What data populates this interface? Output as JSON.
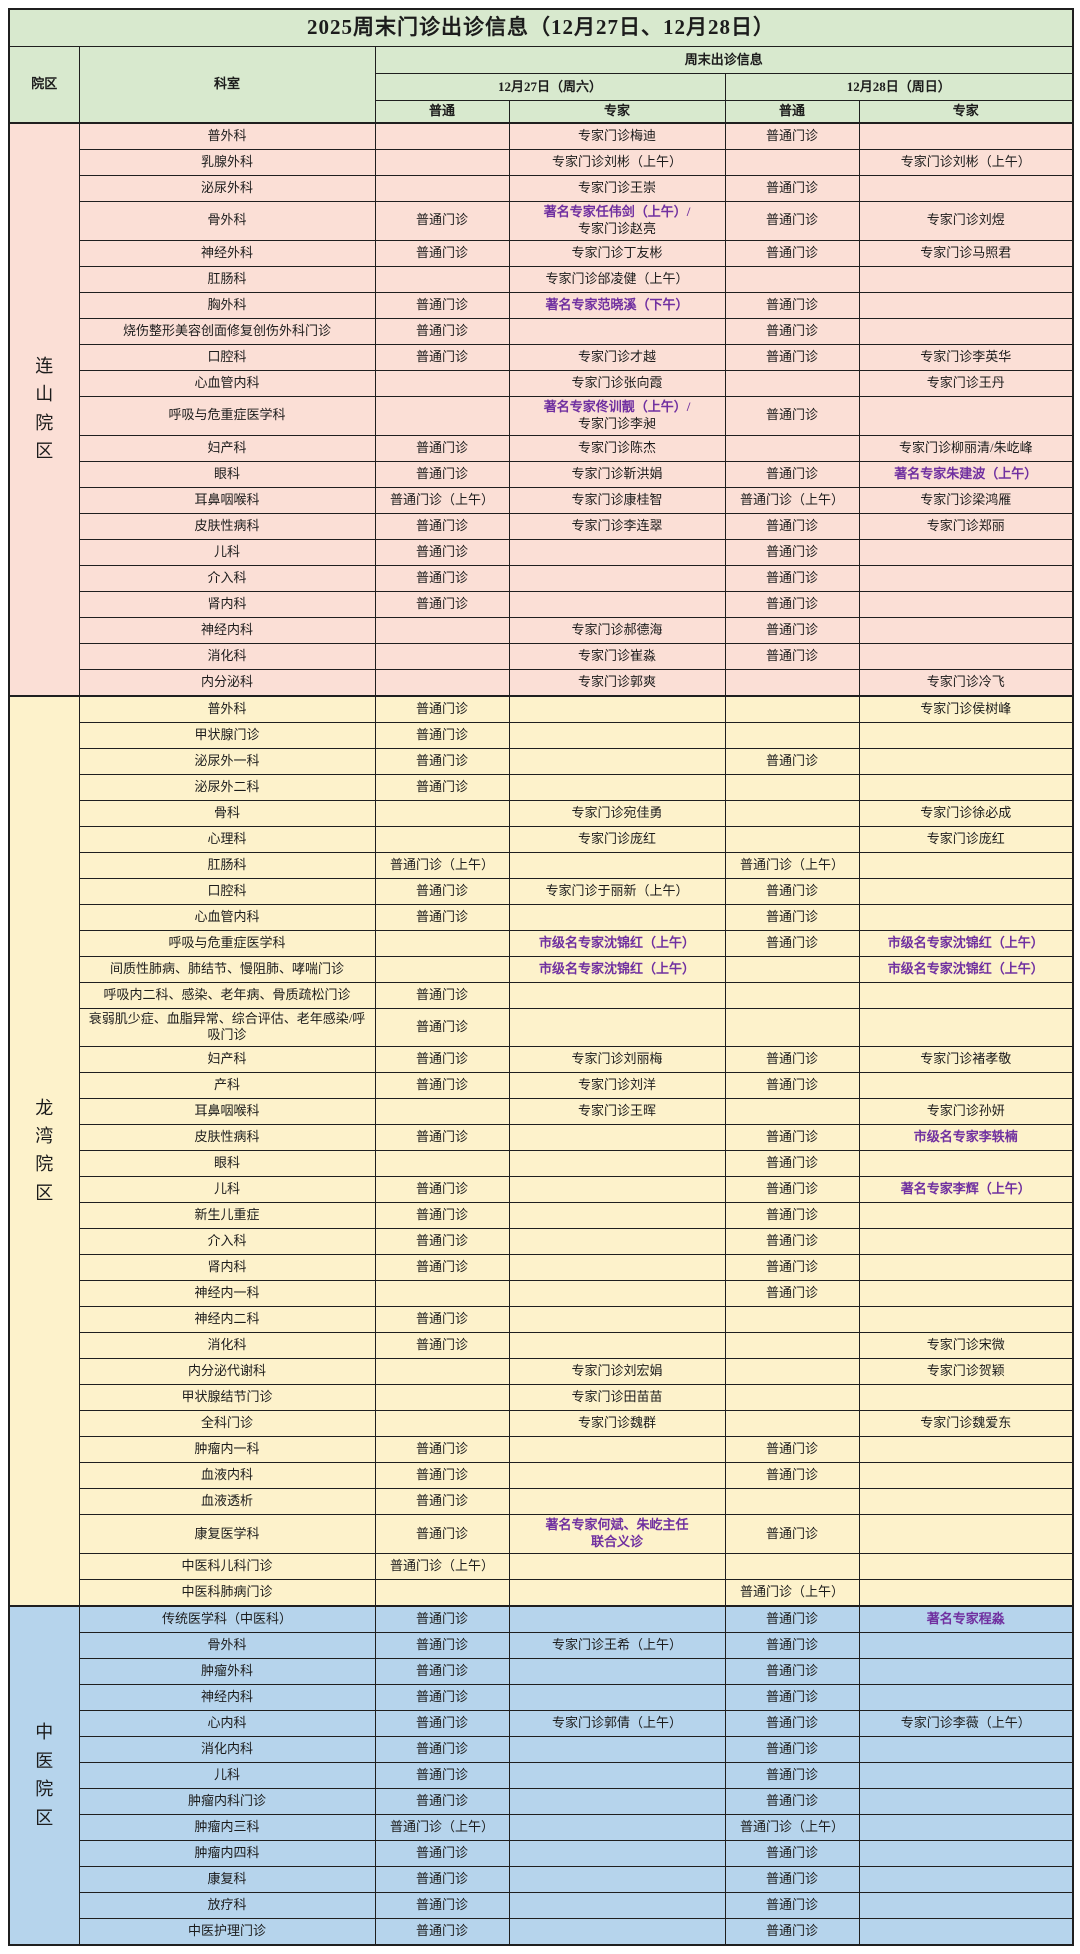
{
  "title": "2025周末门诊出诊信息（12月27日、12月28日）",
  "header": {
    "campus": "院区",
    "department": "科室",
    "weekend_info": "周末出诊信息",
    "day_sat": "12月27日（周六）",
    "day_sun": "12月28日（周日）",
    "ordinary": "普通",
    "expert": "专家"
  },
  "colors": {
    "header_bg": "#d8e9ce",
    "lianshan_bg": "#fbdfd6",
    "longwan_bg": "#fdf2cb",
    "zhongyi_bg": "#b6d4ec",
    "accent_purple": "#7030a0",
    "border": "#1f1f1f"
  },
  "sections": [
    {
      "name": "连山院区",
      "bg": "#fbdfd6",
      "rows": [
        [
          "普外科",
          "",
          "专家门诊梅迪",
          "普通门诊",
          ""
        ],
        [
          "乳腺外科",
          "",
          "专家门诊刘彬（上午）",
          "",
          "专家门诊刘彬（上午）"
        ],
        [
          "泌尿外科",
          "",
          "专家门诊王崇",
          "普通门诊",
          ""
        ],
        [
          "骨外科",
          "普通门诊",
          {
            "lines": [
              {
                "t": "著名专家任伟剑（上午）/",
                "em": true
              },
              {
                "t": "专家门诊赵亮"
              }
            ]
          },
          "普通门诊",
          "专家门诊刘煜"
        ],
        [
          "神经外科",
          "普通门诊",
          "专家门诊丁友彬",
          "普通门诊",
          "专家门诊马照君"
        ],
        [
          "肛肠科",
          "",
          "专家门诊邰凌健（上午）",
          "",
          ""
        ],
        [
          "胸外科",
          "普通门诊",
          {
            "t": "著名专家范晓溪（下午）",
            "em": true
          },
          "普通门诊",
          ""
        ],
        [
          "烧伤整形美容创面修复创伤外科门诊",
          "普通门诊",
          "",
          "普通门诊",
          ""
        ],
        [
          "口腔科",
          "普通门诊",
          "专家门诊才越",
          "普通门诊",
          "专家门诊李英华"
        ],
        [
          "心血管内科",
          "",
          "专家门诊张向霞",
          "",
          "专家门诊王丹"
        ],
        [
          "呼吸与危重症医学科",
          "",
          {
            "lines": [
              {
                "t": "著名专家佟训靓（上午）/",
                "em": true
              },
              {
                "t": "专家门诊李昶"
              }
            ]
          },
          "普通门诊",
          ""
        ],
        [
          "妇产科",
          "普通门诊",
          "专家门诊陈杰",
          "",
          "专家门诊柳丽清/朱屹峰"
        ],
        [
          "眼科",
          "普通门诊",
          "专家门诊靳洪娟",
          "普通门诊",
          {
            "t": "著名专家朱建波（上午）",
            "em": true
          }
        ],
        [
          "耳鼻咽喉科",
          "普通门诊（上午）",
          "专家门诊康桂智",
          "普通门诊（上午）",
          "专家门诊梁鸿雁"
        ],
        [
          "皮肤性病科",
          "普通门诊",
          "专家门诊李连翠",
          "普通门诊",
          "专家门诊郑丽"
        ],
        [
          "儿科",
          "普通门诊",
          "",
          "普通门诊",
          ""
        ],
        [
          "介入科",
          "普通门诊",
          "",
          "普通门诊",
          ""
        ],
        [
          "肾内科",
          "普通门诊",
          "",
          "普通门诊",
          ""
        ],
        [
          "神经内科",
          "",
          "专家门诊郝德海",
          "普通门诊",
          ""
        ],
        [
          "消化科",
          "",
          "专家门诊崔淼",
          "普通门诊",
          ""
        ],
        [
          "内分泌科",
          "",
          "专家门诊郭爽",
          "",
          "专家门诊冷飞"
        ]
      ]
    },
    {
      "name": "龙湾院区",
      "bg": "#fdf2cb",
      "rows": [
        [
          "普外科",
          "普通门诊",
          "",
          "",
          "专家门诊侯树峰"
        ],
        [
          "甲状腺门诊",
          "普通门诊",
          "",
          "",
          ""
        ],
        [
          "泌尿外一科",
          "普通门诊",
          "",
          "普通门诊",
          ""
        ],
        [
          "泌尿外二科",
          "普通门诊",
          "",
          "",
          ""
        ],
        [
          "骨科",
          "",
          "专家门诊宛佳勇",
          "",
          "专家门诊徐必成"
        ],
        [
          "心理科",
          "",
          "专家门诊庞红",
          "",
          "专家门诊庞红"
        ],
        [
          "肛肠科",
          "普通门诊（上午）",
          "",
          "普通门诊（上午）",
          ""
        ],
        [
          "口腔科",
          "普通门诊",
          "专家门诊于丽新（上午）",
          "普通门诊",
          ""
        ],
        [
          "心血管内科",
          "普通门诊",
          "",
          "普通门诊",
          ""
        ],
        [
          "呼吸与危重症医学科",
          "",
          {
            "t": "市级名专家沈锦红（上午）",
            "em": true
          },
          "普通门诊",
          {
            "t": "市级名专家沈锦红（上午）",
            "em": true
          }
        ],
        [
          "间质性肺病、肺结节、慢阻肺、哮喘门诊",
          "",
          {
            "t": "市级名专家沈锦红（上午）",
            "em": true
          },
          "",
          {
            "t": "市级名专家沈锦红（上午）",
            "em": true
          }
        ],
        [
          "呼吸内二科、感染、老年病、骨质疏松门诊",
          "普通门诊",
          "",
          "",
          ""
        ],
        [
          "衰弱肌少症、血脂异常、综合评估、老年感染/呼吸门诊",
          "普通门诊",
          "",
          "",
          ""
        ],
        [
          "妇产科",
          "普通门诊",
          "专家门诊刘丽梅",
          "普通门诊",
          "专家门诊褚孝敬"
        ],
        [
          "产科",
          "普通门诊",
          "专家门诊刘洋",
          "普通门诊",
          ""
        ],
        [
          "耳鼻咽喉科",
          "",
          "专家门诊王晖",
          "",
          "专家门诊孙妍"
        ],
        [
          "皮肤性病科",
          "普通门诊",
          "",
          "普通门诊",
          {
            "t": "市级名专家李轶楠",
            "em": true
          }
        ],
        [
          "眼科",
          "",
          "",
          "普通门诊",
          ""
        ],
        [
          "儿科",
          "普通门诊",
          "",
          "普通门诊",
          {
            "t": "著名专家李辉（上午）",
            "em": true
          }
        ],
        [
          "新生儿重症",
          "普通门诊",
          "",
          "普通门诊",
          ""
        ],
        [
          "介入科",
          "普通门诊",
          "",
          "普通门诊",
          ""
        ],
        [
          "肾内科",
          "普通门诊",
          "",
          "普通门诊",
          ""
        ],
        [
          "神经内一科",
          "",
          "",
          "普通门诊",
          ""
        ],
        [
          "神经内二科",
          "普通门诊",
          "",
          "",
          ""
        ],
        [
          "消化科",
          "普通门诊",
          "",
          "",
          "专家门诊宋微"
        ],
        [
          "内分泌代谢科",
          "",
          "专家门诊刘宏娟",
          "",
          "专家门诊贺颖"
        ],
        [
          "甲状腺结节门诊",
          "",
          "专家门诊田苗苗",
          "",
          ""
        ],
        [
          "全科门诊",
          "",
          "专家门诊魏群",
          "",
          "专家门诊魏爱东"
        ],
        [
          "肿瘤内一科",
          "普通门诊",
          "",
          "普通门诊",
          ""
        ],
        [
          "血液内科",
          "普通门诊",
          "",
          "普通门诊",
          ""
        ],
        [
          "血液透析",
          "普通门诊",
          "",
          "",
          ""
        ],
        [
          "康复医学科",
          "普通门诊",
          {
            "lines": [
              {
                "t": "著名专家何斌、朱屹主任",
                "em": true
              },
              {
                "t": "联合义诊",
                "em": true
              }
            ]
          },
          "普通门诊",
          ""
        ],
        [
          "中医科儿科门诊",
          "普通门诊（上午）",
          "",
          "",
          ""
        ],
        [
          "中医科肺病门诊",
          "",
          "",
          "普通门诊（上午）",
          ""
        ]
      ]
    },
    {
      "name": "中医院区",
      "bg": "#b6d4ec",
      "rows": [
        [
          "传统医学科（中医科）",
          "普通门诊",
          "",
          "普通门诊",
          {
            "t": "著名专家程淼",
            "em": true
          }
        ],
        [
          "骨外科",
          "普通门诊",
          "专家门诊王希（上午）",
          "普通门诊",
          ""
        ],
        [
          "肿瘤外科",
          "普通门诊",
          "",
          "普通门诊",
          ""
        ],
        [
          "神经内科",
          "普通门诊",
          "",
          "普通门诊",
          ""
        ],
        [
          "心内科",
          "普通门诊",
          "专家门诊郭倩（上午）",
          "普通门诊",
          "专家门诊李薇（上午）"
        ],
        [
          "消化内科",
          "普通门诊",
          "",
          "普通门诊",
          ""
        ],
        [
          "儿科",
          "普通门诊",
          "",
          "普通门诊",
          ""
        ],
        [
          "肿瘤内科门诊",
          "普通门诊",
          "",
          "普通门诊",
          ""
        ],
        [
          "肿瘤内三科",
          "普通门诊（上午）",
          "",
          "普通门诊（上午）",
          ""
        ],
        [
          "肿瘤内四科",
          "普通门诊",
          "",
          "普通门诊",
          ""
        ],
        [
          "康复科",
          "普通门诊",
          "",
          "普通门诊",
          ""
        ],
        [
          "放疗科",
          "普通门诊",
          "",
          "普通门诊",
          ""
        ],
        [
          "中医护理门诊",
          "普通门诊",
          "",
          "普通门诊",
          ""
        ]
      ]
    }
  ]
}
